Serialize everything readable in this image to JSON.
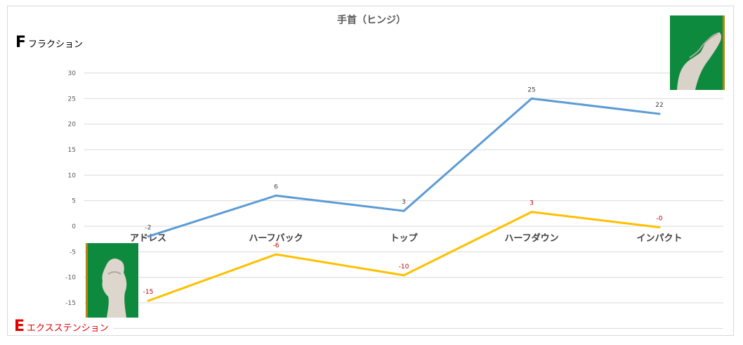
{
  "chart_data": {
    "type": "line",
    "title": "手首（ヒンジ）",
    "categories": [
      "アドレス",
      "ハーフバック",
      "トップ",
      "ハーフダウン",
      "インパクト"
    ],
    "ylim": [
      -20,
      30
    ],
    "yticks": [
      "30",
      "25",
      "20",
      "15",
      "10",
      "5",
      "0",
      "-5",
      "-10",
      "-15"
    ],
    "grid": true,
    "series": [
      {
        "color": "#5b9bd5",
        "values": [
          -2,
          6,
          3,
          25,
          22
        ],
        "labels": [
          "-2",
          "6",
          "3",
          "25",
          "22"
        ]
      },
      {
        "color": "#ffc000",
        "values": [
          -14.6,
          -5.5,
          -9.6,
          2.8,
          -0.2
        ],
        "labels": [
          "-15",
          "-6",
          "-10",
          "3",
          "-0"
        ]
      }
    ]
  },
  "annotations": {
    "flexion": {
      "letter": "F",
      "text": "フラクション"
    },
    "extension": {
      "letter": "E",
      "text": "エクスステンション"
    }
  }
}
